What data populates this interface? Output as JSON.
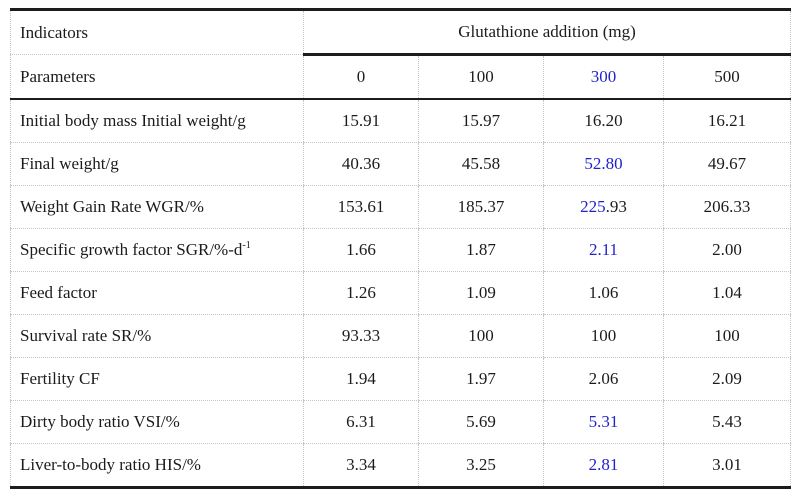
{
  "colors": {
    "text": "#1b1b1b",
    "highlight_blue": "#2222cc",
    "grid_dotted": "#c6c6c6",
    "rule_black": "#1c1c1c",
    "background": "#ffffff"
  },
  "table": {
    "header": {
      "row1_left": "Indicators",
      "row1_span": "Glutathione addition (mg)",
      "row2_left": "Parameters",
      "columns": [
        {
          "label": "0",
          "highlight": false
        },
        {
          "label": "100",
          "highlight": false
        },
        {
          "label": "300",
          "highlight": true
        },
        {
          "label": "500",
          "highlight": false
        }
      ]
    },
    "rows": [
      {
        "label": [
          {
            "t": "Initial body mass Initial weight/g"
          }
        ],
        "values": [
          [
            {
              "t": "15.91"
            }
          ],
          [
            {
              "t": "15.97"
            }
          ],
          [
            {
              "t": "16.20"
            }
          ],
          [
            {
              "t": "16.21"
            }
          ]
        ]
      },
      {
        "label": [
          {
            "t": "Final weight/g"
          }
        ],
        "values": [
          [
            {
              "t": "40.36"
            }
          ],
          [
            {
              "t": "45.58"
            }
          ],
          [
            {
              "t": "52.80",
              "c": "blue"
            }
          ],
          [
            {
              "t": "49.67"
            }
          ]
        ]
      },
      {
        "label": [
          {
            "t": "Weight Gain Rate WGR/%"
          }
        ],
        "values": [
          [
            {
              "t": "153.61"
            }
          ],
          [
            {
              "t": "185.37"
            }
          ],
          [
            {
              "t": "225",
              "c": "blue"
            },
            {
              "t": ".93"
            }
          ],
          [
            {
              "t": "206.33"
            }
          ]
        ]
      },
      {
        "label": [
          {
            "t": "Specific growth factor SGR/%-d"
          },
          {
            "t": "-1",
            "sup": true
          }
        ],
        "values": [
          [
            {
              "t": "1.66"
            }
          ],
          [
            {
              "t": "1.87"
            }
          ],
          [
            {
              "t": "2.11",
              "c": "blue"
            }
          ],
          [
            {
              "t": "2.00"
            }
          ]
        ]
      },
      {
        "label": [
          {
            "t": "Feed factor"
          }
        ],
        "values": [
          [
            {
              "t": "1.26"
            }
          ],
          [
            {
              "t": "1.09"
            }
          ],
          [
            {
              "t": "1.06"
            }
          ],
          [
            {
              "t": "1.04"
            }
          ]
        ]
      },
      {
        "label": [
          {
            "t": "Survival rate SR/%"
          }
        ],
        "values": [
          [
            {
              "t": "93.33"
            }
          ],
          [
            {
              "t": "100"
            }
          ],
          [
            {
              "t": "100"
            }
          ],
          [
            {
              "t": "100"
            }
          ]
        ]
      },
      {
        "label": [
          {
            "t": "Fertility CF"
          }
        ],
        "values": [
          [
            {
              "t": "1.94"
            }
          ],
          [
            {
              "t": "1.97"
            }
          ],
          [
            {
              "t": "2.06"
            }
          ],
          [
            {
              "t": "2.09"
            }
          ]
        ]
      },
      {
        "label": [
          {
            "t": "Dirty body ratio VSI/%"
          }
        ],
        "values": [
          [
            {
              "t": "6.31"
            }
          ],
          [
            {
              "t": "5.69"
            }
          ],
          [
            {
              "t": "5.31",
              "c": "blue"
            }
          ],
          [
            {
              "t": "5.43"
            }
          ]
        ]
      },
      {
        "label": [
          {
            "t": "Liver-to-body ratio HIS/%"
          }
        ],
        "values": [
          [
            {
              "t": "3.34"
            }
          ],
          [
            {
              "t": "3.25"
            }
          ],
          [
            {
              "t": "2.81",
              "c": "blue"
            }
          ],
          [
            {
              "t": "3.01"
            }
          ]
        ]
      }
    ]
  }
}
